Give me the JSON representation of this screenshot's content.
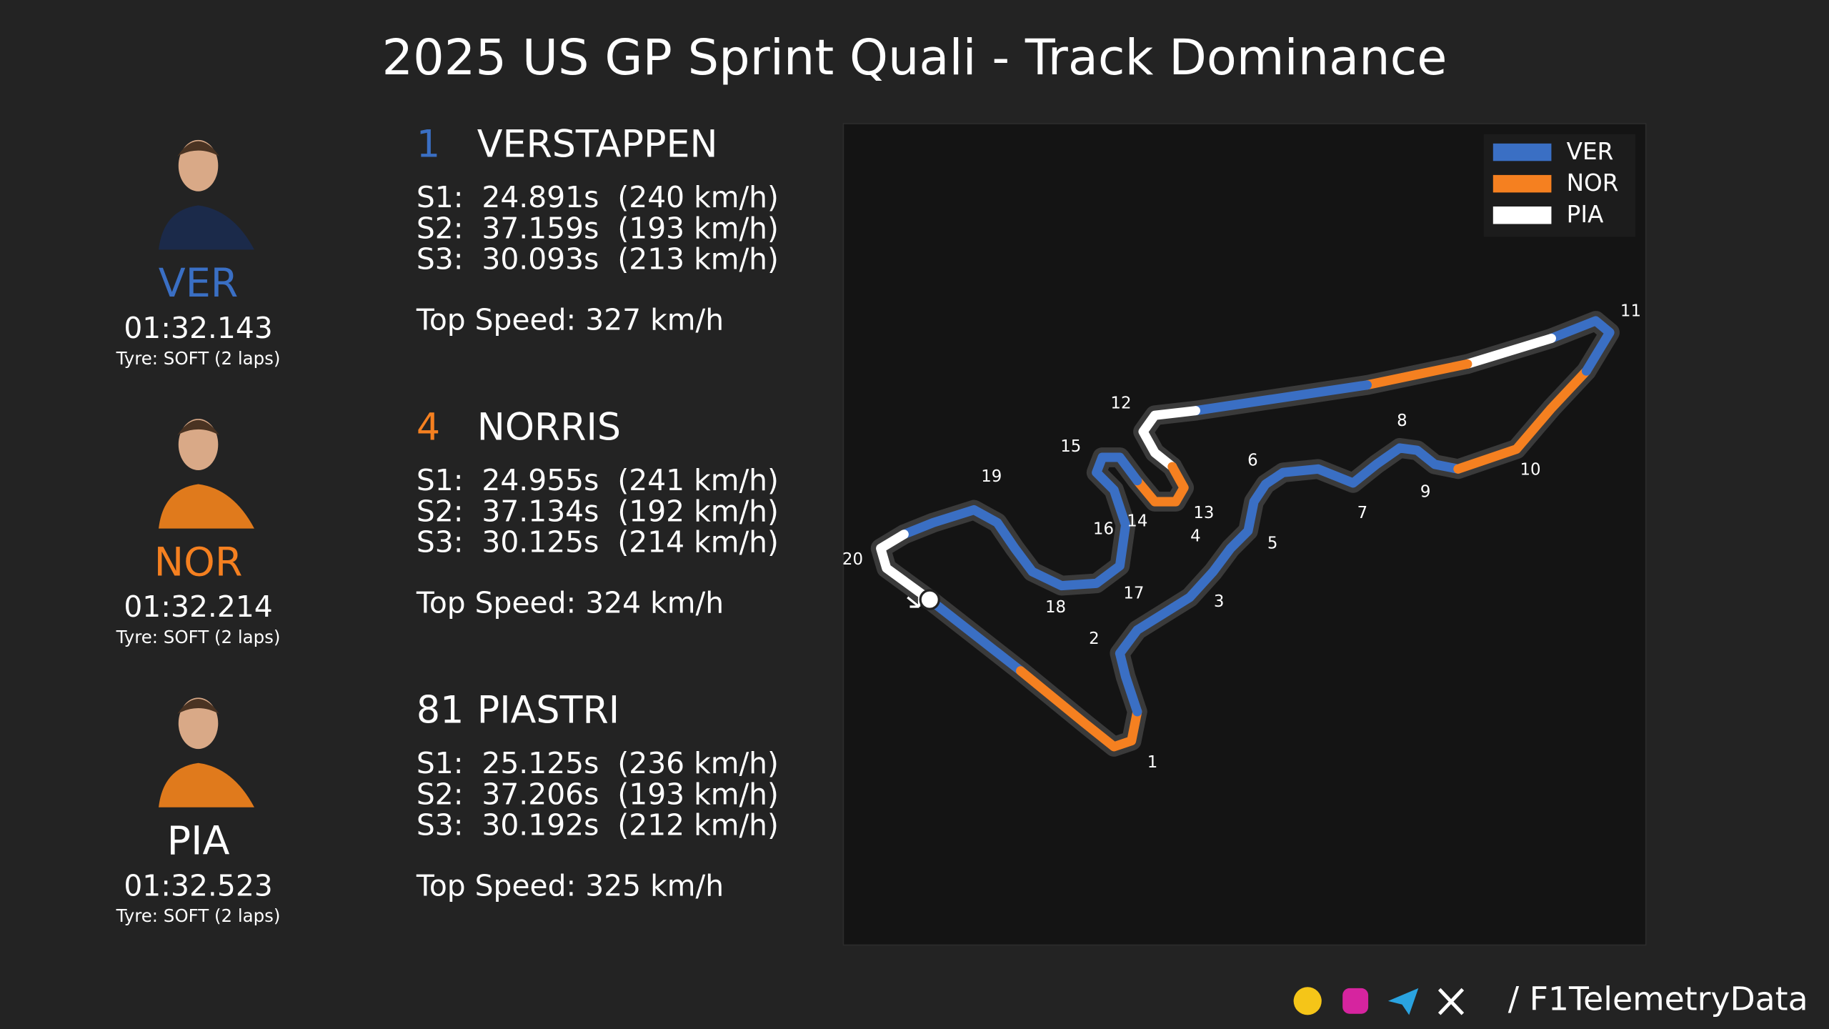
{
  "title": "2025 US GP Sprint Quali - Track Dominance",
  "drivers": [
    {
      "code": "VER",
      "color": "#3a6fc4",
      "lap_time": "01:32.143",
      "tyre": "Tyre: SOFT (2 laps)",
      "position": "1",
      "name": "VERSTAPPEN",
      "sectors": [
        "S1:  24.891s  (240 km/h)",
        "S2:  37.159s  (193 km/h)",
        "S3:  30.093s  (213 km/h)"
      ],
      "top_speed": "Top Speed: 327 km/h"
    },
    {
      "code": "NOR",
      "color": "#f58020",
      "lap_time": "01:32.214",
      "tyre": "Tyre: SOFT (2 laps)",
      "position": "4",
      "name": "NORRIS",
      "sectors": [
        "S1:  24.955s  (241 km/h)",
        "S2:  37.134s  (192 km/h)",
        "S3:  30.125s  (214 km/h)"
      ],
      "top_speed": "Top Speed: 324 km/h"
    },
    {
      "code": "PIA",
      "color": "#ffffff",
      "lap_time": "01:32.523",
      "tyre": "Tyre: SOFT (2 laps)",
      "position": "81",
      "name": "PIASTRI",
      "sectors": [
        "S1:  25.125s  (236 km/h)",
        "S2:  37.206s  (193 km/h)",
        "S3:  30.192s  (212 km/h)"
      ],
      "top_speed": "Top Speed: 325 km/h"
    }
  ],
  "legend": [
    {
      "name": "VER",
      "color": "#3a6fc4"
    },
    {
      "name": "NOR",
      "color": "#f58020"
    },
    {
      "name": "PIA",
      "color": "#ffffff"
    }
  ],
  "corners": [
    "1",
    "2",
    "3",
    "4",
    "5",
    "6",
    "7",
    "8",
    "9",
    "10",
    "11",
    "12",
    "13",
    "14",
    "15",
    "16",
    "17",
    "18",
    "19",
    "20"
  ],
  "footer": "/ F1TelemetryData"
}
